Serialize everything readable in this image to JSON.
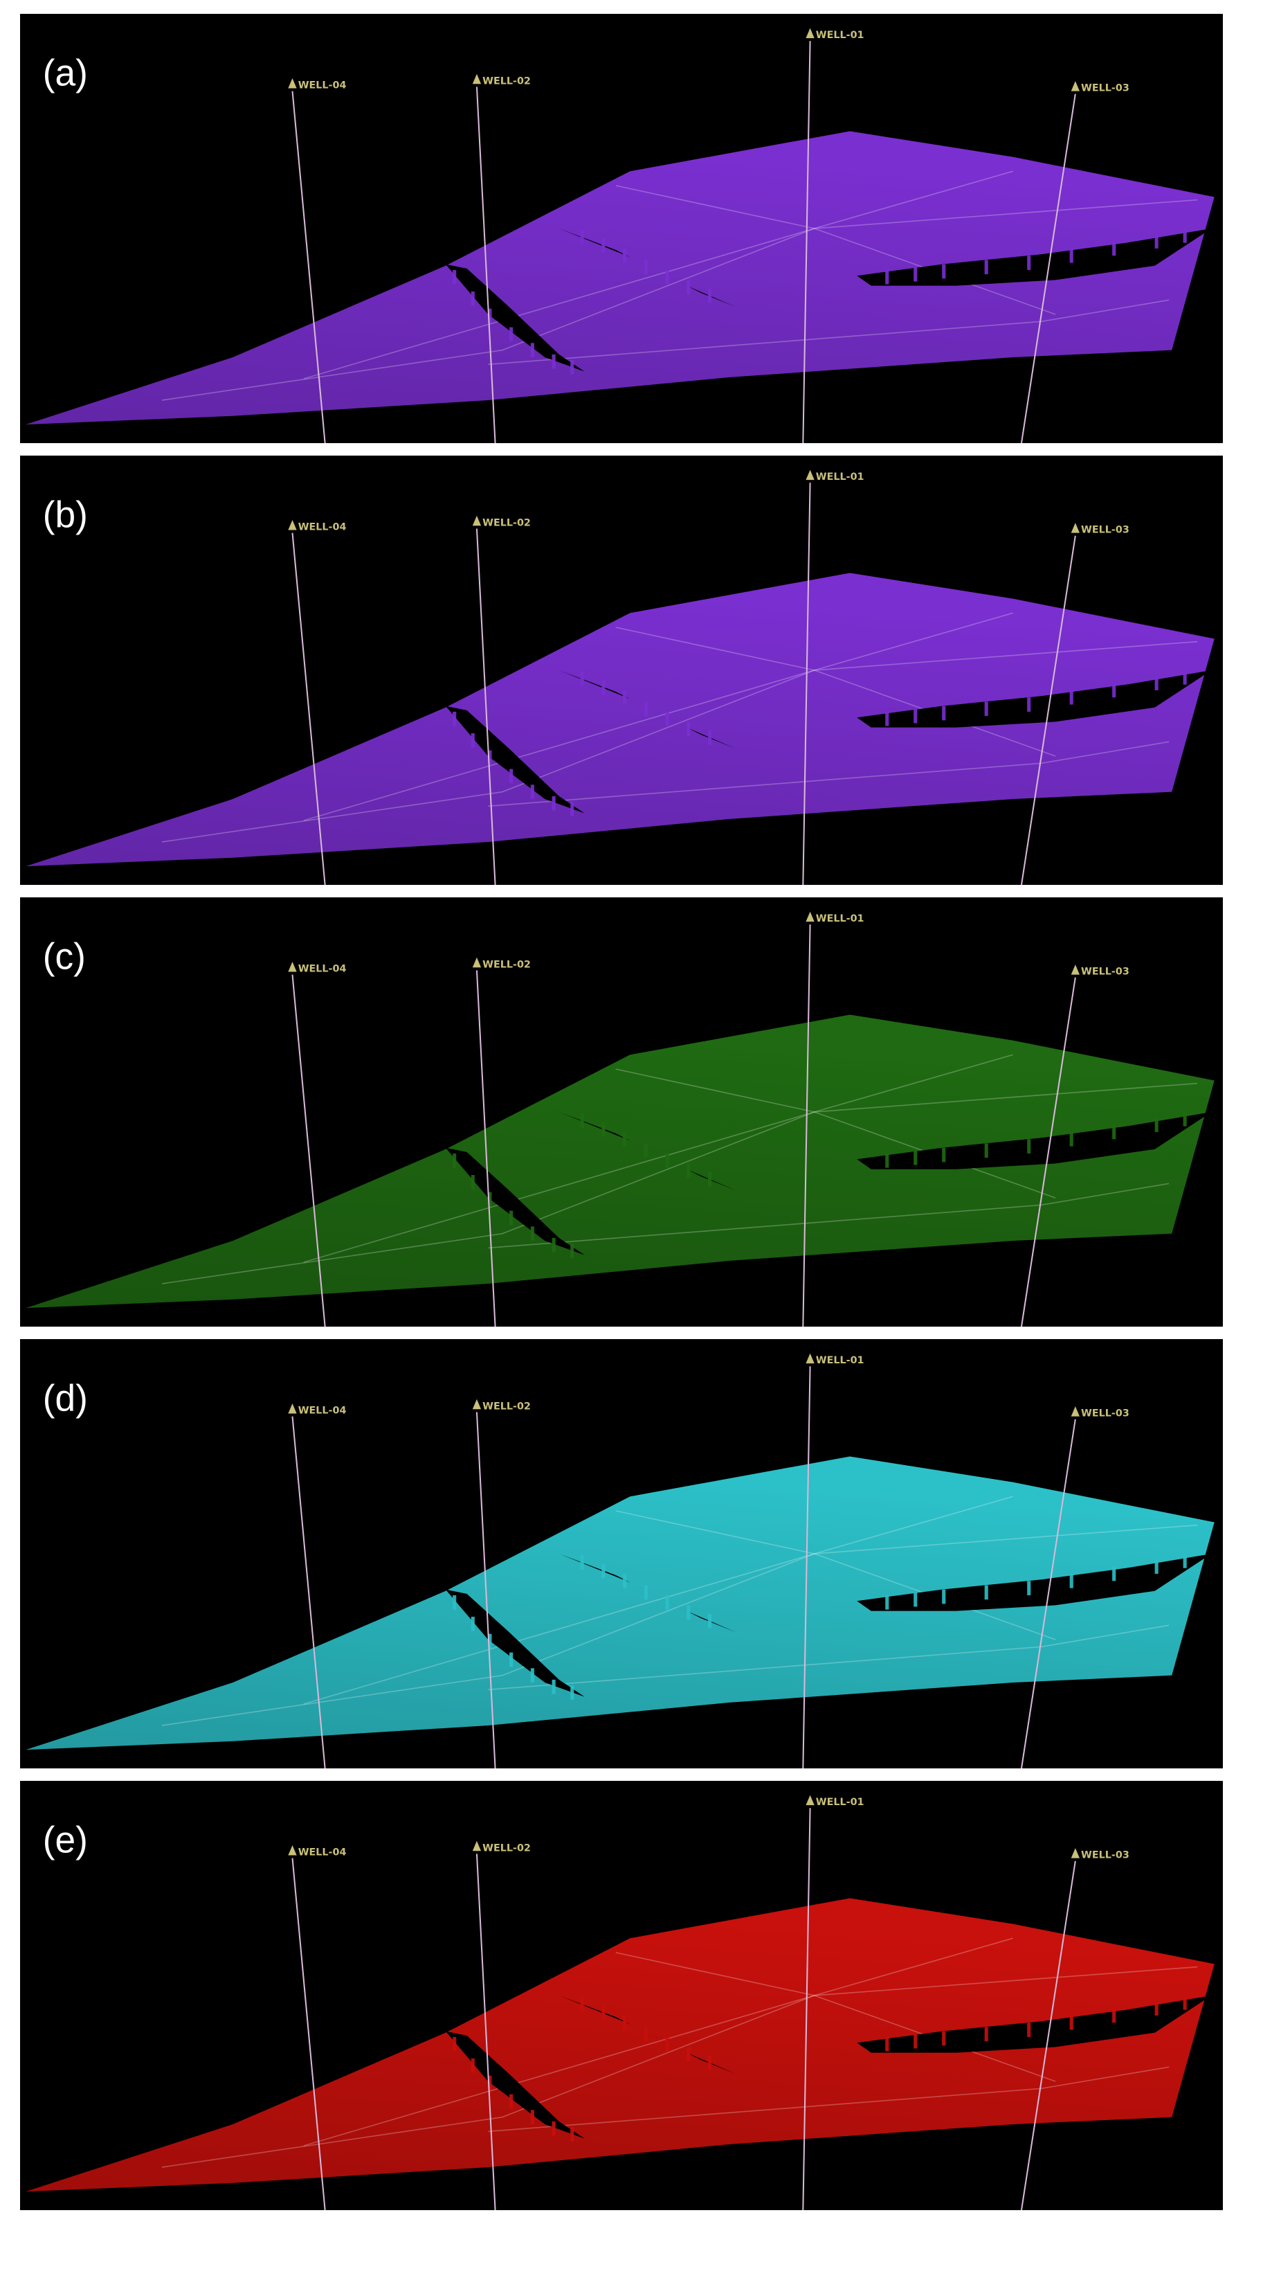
{
  "panels": [
    {
      "label": "(a)",
      "color": "#7a2fd0",
      "wells": [
        "WELL-04",
        "WELL-02",
        "WELL-01",
        "WELL-03"
      ]
    },
    {
      "label": "(b)",
      "color": "#7a2fd0",
      "wells": [
        "WELL-04",
        "WELL-02",
        "WELL-01",
        "WELL-03"
      ]
    },
    {
      "label": "(c)",
      "color": "#1f6a12",
      "wells": [
        "WELL-04",
        "WELL-02",
        "WELL-01",
        "WELL-03"
      ]
    },
    {
      "label": "(d)",
      "color": "#2cc0c8",
      "wells": [
        "WELL-04",
        "WELL-02",
        "WELL-01",
        "WELL-03"
      ]
    },
    {
      "label": "(e)",
      "color": "#c8100c",
      "wells": [
        "WELL-04",
        "WELL-02",
        "WELL-01",
        "WELL-03"
      ]
    }
  ]
}
